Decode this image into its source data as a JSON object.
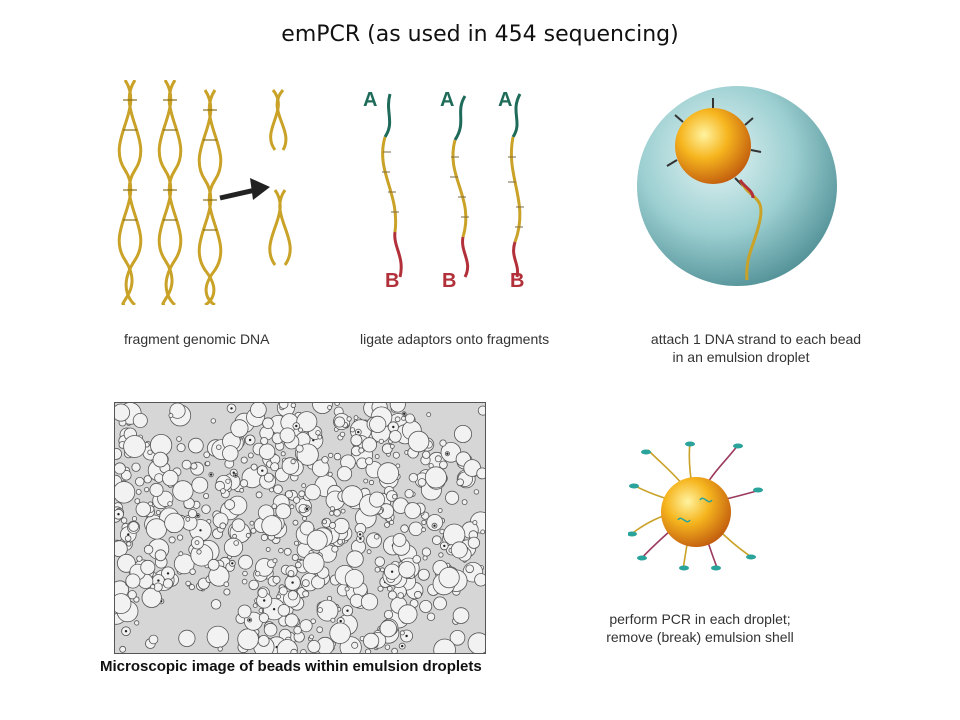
{
  "title": "emPCR (as used in 454 sequencing)",
  "panels": {
    "fragment": {
      "caption": "fragment genomic DNA"
    },
    "ligate": {
      "caption": "ligate adaptors onto fragments",
      "adaptor_a": "A",
      "adaptor_b": "B"
    },
    "attach": {
      "caption_line1": "attach 1 DNA strand to each bead",
      "caption_line2": "in an emulsion droplet"
    },
    "microscope": {
      "caption": "Microscopic image of beads within emulsion droplets"
    },
    "pcr": {
      "caption_line1": "perform PCR in each droplet;",
      "caption_line2": "remove (break) emulsion shell"
    }
  },
  "colors": {
    "dna_gold": "#c9a227",
    "adaptor_green": "#1e6b5a",
    "adaptor_red": "#b2303a",
    "droplet": "#7fb9bd",
    "bead": "#f2a81c"
  }
}
